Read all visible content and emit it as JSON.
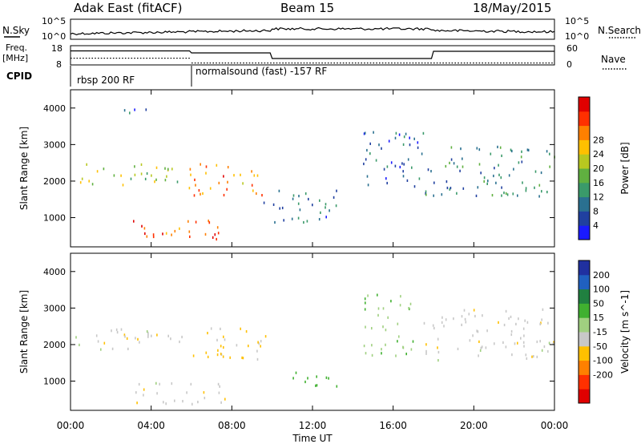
{
  "header": {
    "title": "Adak East (fitACF)",
    "beam": "Beam 15",
    "date": "18/May/2015"
  },
  "strip_labels": {
    "nsky": "N.Sky",
    "freq_line1": "Freq.",
    "freq_line2": "[MHz]",
    "cpid": "CPID",
    "nsearch": "N.Search",
    "nave": "Nave"
  },
  "strip_ticks": {
    "sky_top": "10^5",
    "sky_bottom": "10^0",
    "freq_top": "18",
    "freq_bottom": "8",
    "nave_top": "60",
    "nave_bottom": "0"
  },
  "cpid_segments": [
    {
      "label": "rbsp 200 RF",
      "start_hour": 0
    },
    {
      "label": "normalsound (fast) -157 RF",
      "start_hour": 6
    }
  ],
  "chart_data": [
    {
      "type": "heatmap",
      "name": "Power",
      "ylabel": "Slant Range [km]",
      "ylim": [
        200,
        4500
      ],
      "yticks": [
        1000,
        2000,
        3000,
        4000
      ],
      "xlim_hours": [
        0,
        24
      ],
      "colorbar": {
        "label": "Power [dB]",
        "ticks": [
          "4",
          "8",
          "12",
          "16",
          "20",
          "24",
          "28"
        ],
        "colors": [
          "#1a1aff",
          "#2040a0",
          "#2a7090",
          "#3a9a6a",
          "#60b040",
          "#b8c820",
          "#ffc000",
          "#ff8000",
          "#ff3000",
          "#e00000"
        ]
      },
      "features": [
        {
          "t": [
            0.2,
            5.8
          ],
          "range_km": [
            1900,
            2500
          ],
          "dB": 18
        },
        {
          "t": [
            5.8,
            9.8
          ],
          "range_km": [
            1600,
            2500
          ],
          "dB": 26
        },
        {
          "t": [
            9.5,
            13.3
          ],
          "range_km": [
            900,
            1800
          ],
          "dB": 10
        },
        {
          "t": [
            3.0,
            7.8
          ],
          "range_km": [
            400,
            1000
          ],
          "dB": 28
        },
        {
          "t": [
            2.5,
            3.8
          ],
          "range_km": [
            3700,
            4100
          ],
          "dB": 8
        },
        {
          "t": [
            14.5,
            17.5
          ],
          "range_km": [
            1700,
            3400
          ],
          "dB": 8
        },
        {
          "t": [
            17.5,
            24.0
          ],
          "range_km": [
            1600,
            3000
          ],
          "dB": 12
        }
      ]
    },
    {
      "type": "heatmap",
      "name": "Velocity",
      "ylabel": "Slant Range [km]",
      "ylim": [
        200,
        4500
      ],
      "yticks": [
        1000,
        2000,
        3000,
        4000
      ],
      "xlim_hours": [
        0,
        24
      ],
      "colorbar": {
        "label": "Velocity [m s^-1]",
        "ticks": [
          "200",
          "100",
          "50",
          "15",
          "-15",
          "-50",
          "-100",
          "-200"
        ],
        "colors": [
          "#2030a0",
          "#2060c0",
          "#208040",
          "#40b030",
          "#a0d080",
          "#c8c8c8",
          "#ffc000",
          "#ff8000",
          "#ff3000",
          "#e00000"
        ]
      },
      "features": [
        {
          "t": [
            0.2,
            5.8
          ],
          "range_km": [
            1900,
            2500
          ],
          "velocity_ms": 0
        },
        {
          "t": [
            5.8,
            9.8
          ],
          "range_km": [
            1600,
            2500
          ],
          "velocity_ms": -20
        },
        {
          "t": [
            3.0,
            7.8
          ],
          "range_km": [
            400,
            1000
          ],
          "velocity_ms": 0
        },
        {
          "t": [
            11.0,
            13.3
          ],
          "range_km": [
            800,
            1300
          ],
          "velocity_ms": 80
        },
        {
          "t": [
            14.5,
            17.0
          ],
          "range_km": [
            1700,
            3400
          ],
          "velocity_ms": 40
        },
        {
          "t": [
            17.5,
            24.0
          ],
          "range_km": [
            1600,
            3000
          ],
          "velocity_ms": 0
        }
      ]
    }
  ],
  "x_axis": {
    "label": "Time UT",
    "ticks": [
      "00:00",
      "04:00",
      "08:00",
      "12:00",
      "16:00",
      "20:00",
      "00:00"
    ]
  }
}
